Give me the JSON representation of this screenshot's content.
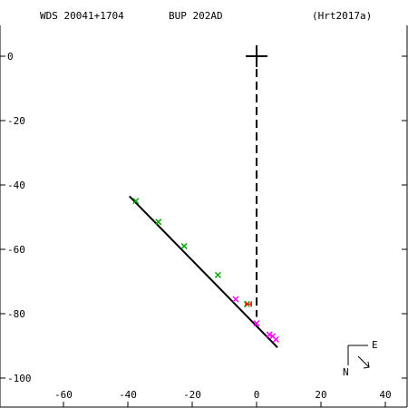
{
  "header": {
    "wds_id": "WDS 20041+1704",
    "discoverer": "BUP 202AD",
    "reference": "(Hrt2017a)"
  },
  "orientation": {
    "east_label": "E",
    "north_label": "N"
  },
  "chart_data": {
    "type": "scatter",
    "title": "",
    "xlabel": "",
    "ylabel": "",
    "xlim": [
      -80,
      42
    ],
    "ylim": [
      -108,
      14
    ],
    "x_ticks": [
      -60,
      -40,
      -20,
      0,
      20,
      40
    ],
    "y_ticks": [
      0,
      -20,
      -40,
      -60,
      -80,
      -100
    ],
    "grid": false,
    "primary_star": [
      0,
      0
    ],
    "fitted_line": [
      [
        -39.5,
        -43.5
      ],
      [
        6.5,
        -90.5
      ]
    ],
    "projection_line": [
      [
        0,
        0
      ],
      [
        0,
        -81
      ]
    ],
    "series": [
      {
        "marker": "x",
        "color": "#00aa00",
        "points": [
          [
            -37.5,
            -45
          ],
          [
            -30.5,
            -51.5
          ],
          [
            -22.5,
            -59
          ],
          [
            -12,
            -68
          ],
          [
            -3,
            -77
          ]
        ]
      },
      {
        "marker": "x",
        "color": "#ff00ff",
        "points": [
          [
            -6.5,
            -75.5
          ],
          [
            0,
            -83
          ],
          [
            4,
            -86.5
          ],
          [
            5,
            -87
          ],
          [
            6,
            -88
          ]
        ]
      },
      {
        "marker": "H",
        "color": "#ff0000",
        "points": [
          [
            -2.5,
            -77
          ]
        ]
      }
    ]
  }
}
